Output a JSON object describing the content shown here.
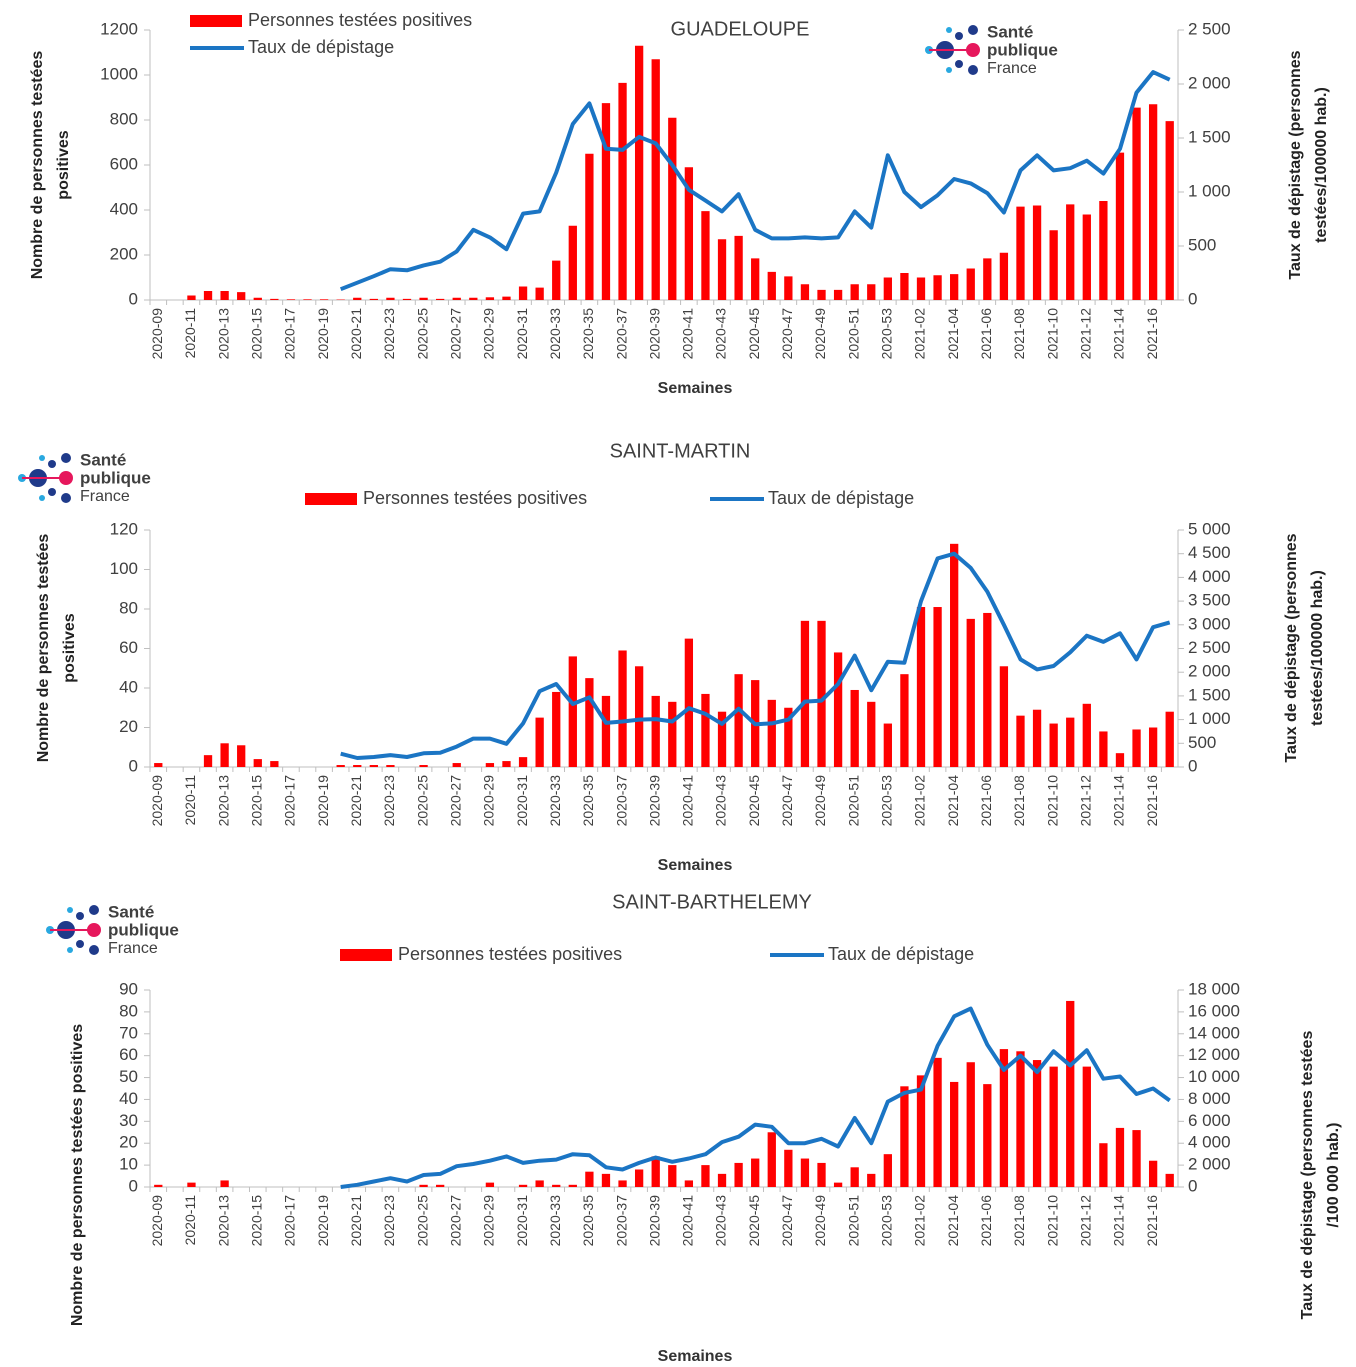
{
  "chart_data": [
    {
      "type": "bar-line",
      "title": "GUADELOUPE",
      "logo": [
        "Santé",
        "publique",
        "France"
      ],
      "xlabel": "Semaines",
      "ylabel": [
        "Nombre de personnes testées",
        "positives"
      ],
      "y2label": [
        "Taux de dépistage (personnes",
        "testées/100000 hab.)"
      ],
      "categories": [
        "2020-09",
        null,
        "2020-11",
        null,
        "2020-13",
        null,
        "2020-15",
        null,
        "2020-17",
        null,
        "2020-19",
        null,
        "2020-21",
        null,
        "2020-23",
        null,
        "2020-25",
        null,
        "2020-27",
        null,
        "2020-29",
        null,
        "2020-31",
        null,
        "2020-33",
        null,
        "2020-35",
        null,
        "2020-37",
        null,
        "2020-39",
        null,
        "2020-41",
        null,
        "2020-43",
        null,
        "2020-45",
        null,
        "2020-47",
        null,
        "2020-49",
        null,
        "2020-51",
        null,
        "2020-53",
        null,
        "2021-02",
        null,
        "2021-04",
        null,
        "2021-06",
        null,
        "2021-08",
        null,
        "2021-10",
        null,
        "2021-12",
        null,
        "2021-14",
        null,
        "2021-16",
        null
      ],
      "series": [
        {
          "name": "Personnes testées positives",
          "type": "bar",
          "color": "#ff0000",
          "values": [
            0,
            0,
            20,
            40,
            40,
            35,
            10,
            5,
            3,
            3,
            3,
            2,
            10,
            5,
            10,
            5,
            10,
            5,
            10,
            10,
            12,
            15,
            60,
            55,
            175,
            330,
            650,
            875,
            965,
            1130,
            1070,
            810,
            590,
            395,
            270,
            285,
            185,
            125,
            105,
            70,
            45,
            45,
            70,
            70,
            100,
            120,
            100,
            110,
            115,
            140,
            185,
            210,
            415,
            420,
            310,
            425,
            380,
            440,
            655,
            855,
            870,
            795
          ]
        },
        {
          "name": "Taux de dépistage",
          "type": "line",
          "axis": "y2",
          "color": "#1b75c4",
          "values": [
            null,
            null,
            null,
            null,
            null,
            null,
            null,
            null,
            null,
            null,
            null,
            100,
            160,
            220,
            285,
            275,
            320,
            355,
            450,
            650,
            580,
            470,
            800,
            820,
            1180,
            1630,
            1820,
            1400,
            1390,
            1510,
            1450,
            1250,
            1020,
            920,
            820,
            980,
            650,
            570,
            570,
            580,
            570,
            580,
            820,
            670,
            1340,
            1000,
            860,
            970,
            1120,
            1080,
            990,
            810,
            1200,
            1340,
            1200,
            1220,
            1290,
            1170,
            1400,
            1920,
            2110,
            2040
          ]
        }
      ],
      "ylim": [
        0,
        1200
      ],
      "yticks": [
        0,
        200,
        400,
        600,
        800,
        1000,
        1200
      ],
      "y2lim": [
        0,
        2500
      ],
      "y2ticks": [
        0,
        500,
        {
          "value": 1000,
          "label": "1 000"
        },
        {
          "value": 1500,
          "label": "1 500"
        },
        {
          "value": 2000,
          "label": "2 000"
        },
        {
          "value": 2500,
          "label": "2 500"
        }
      ]
    },
    {
      "type": "bar-line",
      "title": "SAINT-MARTIN",
      "logo": [
        "Santé",
        "publique",
        "France"
      ],
      "xlabel": "Semaines",
      "ylabel": [
        "Nombre  de personnes testées",
        "positives"
      ],
      "y2label": [
        "Taux de dépistage (personnes",
        "testées/100000 hab.)"
      ],
      "categories": [
        "2020-09",
        null,
        "2020-11",
        null,
        "2020-13",
        null,
        "2020-15",
        null,
        "2020-17",
        null,
        "2020-19",
        null,
        "2020-21",
        null,
        "2020-23",
        null,
        "2020-25",
        null,
        "2020-27",
        null,
        "2020-29",
        null,
        "2020-31",
        null,
        "2020-33",
        null,
        "2020-35",
        null,
        "2020-37",
        null,
        "2020-39",
        null,
        "2020-41",
        null,
        "2020-43",
        null,
        "2020-45",
        null,
        "2020-47",
        null,
        "2020-49",
        null,
        "2020-51",
        null,
        "2020-53",
        null,
        "2021-02",
        null,
        "2021-04",
        null,
        "2021-06",
        null,
        "2021-08",
        null,
        "2021-10",
        null,
        "2021-12",
        null,
        "2021-14",
        null,
        "2021-16",
        null
      ],
      "series": [
        {
          "name": "Personnes testées positives",
          "type": "bar",
          "color": "#ff0000",
          "values": [
            2,
            0,
            0,
            6,
            12,
            11,
            4,
            3,
            0,
            0,
            0,
            1,
            1,
            1,
            1,
            0,
            1,
            0,
            2,
            0,
            2,
            3,
            5,
            25,
            38,
            56,
            45,
            36,
            59,
            51,
            36,
            33,
            65,
            37,
            28,
            47,
            44,
            34,
            30,
            74,
            74,
            58,
            39,
            33,
            22,
            47,
            81,
            81,
            113,
            75,
            78,
            51,
            26,
            29,
            22,
            25,
            32,
            18,
            7,
            19,
            20,
            28
          ]
        },
        {
          "name": "Taux de dépistage",
          "type": "line",
          "axis": "y2",
          "color": "#1b75c4",
          "values": [
            null,
            null,
            null,
            null,
            null,
            null,
            null,
            null,
            null,
            null,
            null,
            280,
            190,
            210,
            250,
            210,
            290,
            300,
            430,
            600,
            600,
            490,
            920,
            1600,
            1750,
            1330,
            1470,
            930,
            960,
            1000,
            1010,
            960,
            1240,
            1120,
            910,
            1230,
            900,
            920,
            1000,
            1380,
            1400,
            1750,
            2350,
            1620,
            2220,
            2200,
            3500,
            4400,
            4500,
            4200,
            3700,
            3000,
            2270,
            2060,
            2130,
            2420,
            2770,
            2640,
            2820,
            2270,
            2950,
            3050
          ]
        }
      ],
      "ylim": [
        0,
        120
      ],
      "yticks": [
        0,
        20,
        40,
        60,
        80,
        100,
        120
      ],
      "y2lim": [
        0,
        5000
      ],
      "y2ticks": [
        0,
        500,
        {
          "value": 1000,
          "label": "1 000"
        },
        {
          "value": 1500,
          "label": "1 500"
        },
        {
          "value": 2000,
          "label": "2 000"
        },
        {
          "value": 2500,
          "label": "2 500"
        },
        {
          "value": 3000,
          "label": "3 000"
        },
        {
          "value": 3500,
          "label": "3 500"
        },
        {
          "value": 4000,
          "label": "4 000"
        },
        {
          "value": 4500,
          "label": "4 500"
        },
        {
          "value": 5000,
          "label": "5 000"
        }
      ]
    },
    {
      "type": "bar-line",
      "title": "SAINT-BARTHELEMY",
      "logo": [
        "Santé",
        "publique",
        "France"
      ],
      "xlabel": "Semaines",
      "ylabel": [
        "Nombre de personnes testées positives"
      ],
      "y2label": [
        "Taux de dépistage (personnes testées",
        "/100 000 hab.)"
      ],
      "categories": [
        "2020-09",
        null,
        "2020-11",
        null,
        "2020-13",
        null,
        "2020-15",
        null,
        "2020-17",
        null,
        "2020-19",
        null,
        "2020-21",
        null,
        "2020-23",
        null,
        "2020-25",
        null,
        "2020-27",
        null,
        "2020-29",
        null,
        "2020-31",
        null,
        "2020-33",
        null,
        "2020-35",
        null,
        "2020-37",
        null,
        "2020-39",
        null,
        "2020-41",
        null,
        "2020-43",
        null,
        "2020-45",
        null,
        "2020-47",
        null,
        "2020-49",
        null,
        "2020-51",
        null,
        "2020-53",
        null,
        "2021-02",
        null,
        "2021-04",
        null,
        "2021-06",
        null,
        "2021-08",
        null,
        "2021-10",
        null,
        "2021-12",
        null,
        "2021-14",
        null,
        "2021-16",
        null
      ],
      "series": [
        {
          "name": "Personnes testées positives",
          "type": "bar",
          "color": "#ff0000",
          "values": [
            1,
            0,
            2,
            0,
            3,
            0,
            0,
            0,
            0,
            0,
            0,
            0,
            0,
            0,
            0,
            0,
            1,
            1,
            0,
            0,
            2,
            0,
            1,
            3,
            1,
            1,
            7,
            6,
            3,
            8,
            14,
            10,
            3,
            10,
            6,
            11,
            13,
            25,
            17,
            13,
            11,
            2,
            9,
            6,
            15,
            46,
            51,
            59,
            48,
            57,
            47,
            63,
            62,
            58,
            55,
            85,
            55,
            20,
            27,
            26,
            12,
            6
          ]
        },
        {
          "name": "Taux de dépistage",
          "type": "line",
          "axis": "y2",
          "color": "#1b75c4",
          "values": [
            null,
            null,
            null,
            null,
            null,
            null,
            null,
            null,
            null,
            null,
            null,
            0,
            200,
            500,
            800,
            500,
            1100,
            1200,
            1900,
            2100,
            2400,
            2800,
            2200,
            2400,
            2500,
            3000,
            2900,
            1800,
            1600,
            2200,
            2700,
            2300,
            2600,
            3000,
            4100,
            4600,
            5700,
            5500,
            4000,
            4000,
            4400,
            3700,
            6300,
            4000,
            7800,
            8600,
            8900,
            12900,
            15600,
            16300,
            13000,
            10700,
            12000,
            10500,
            12400,
            11100,
            12500,
            9900,
            10100,
            8500,
            9000,
            7900
          ]
        }
      ],
      "ylim": [
        0,
        90
      ],
      "yticks": [
        0,
        10,
        20,
        30,
        40,
        50,
        60,
        70,
        80,
        90
      ],
      "y2lim": [
        0,
        18000
      ],
      "y2ticks": [
        0,
        {
          "value": 2000,
          "label": "2 000"
        },
        {
          "value": 4000,
          "label": "4 000"
        },
        {
          "value": 6000,
          "label": "6 000"
        },
        {
          "value": 8000,
          "label": "8 000"
        },
        {
          "value": 10000,
          "label": "10 000"
        },
        {
          "value": 12000,
          "label": "12 000"
        },
        {
          "value": 14000,
          "label": "14 000"
        },
        {
          "value": 16000,
          "label": "16 000"
        },
        {
          "value": 18000,
          "label": "18 000"
        }
      ]
    }
  ]
}
